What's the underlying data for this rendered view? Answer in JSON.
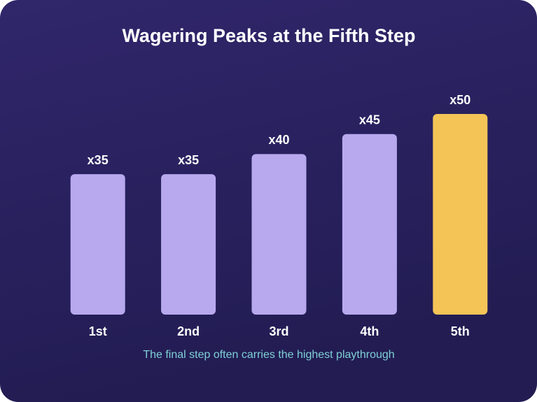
{
  "chart_data": {
    "type": "bar",
    "title": "Wagering Peaks at the Fifth Step",
    "categories": [
      "1st",
      "2nd",
      "3rd",
      "4th",
      "5th"
    ],
    "values": [
      35,
      35,
      40,
      45,
      50
    ],
    "value_labels": [
      "x35",
      "x35",
      "x40",
      "x45",
      "x50"
    ],
    "colors": [
      "#b8a9ef",
      "#b8a9ef",
      "#b8a9ef",
      "#b8a9ef",
      "#f4c457"
    ],
    "caption": "The final step often carries the highest playthrough"
  }
}
